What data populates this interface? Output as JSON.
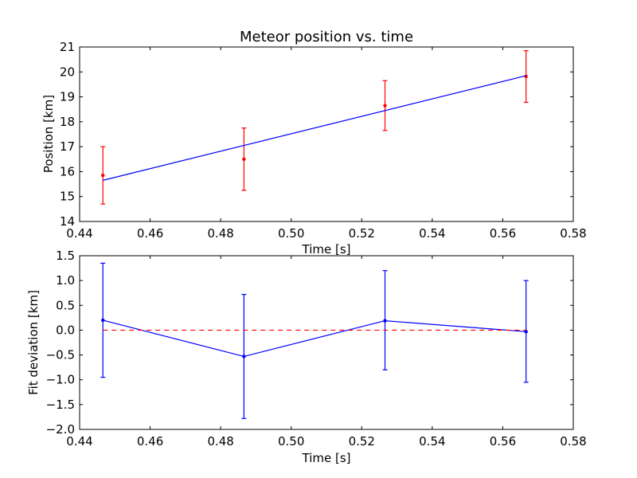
{
  "chart_data": [
    {
      "type": "line",
      "title": "Meteor position vs. time",
      "xlabel": "Time [s]",
      "ylabel": "Position [km]",
      "xlim": [
        0.44,
        0.58
      ],
      "ylim": [
        14,
        21
      ],
      "xticks": [
        "0.44",
        "0.46",
        "0.48",
        "0.50",
        "0.52",
        "0.54",
        "0.56",
        "0.58"
      ],
      "yticks": [
        "14",
        "15",
        "16",
        "17",
        "18",
        "19",
        "20",
        "21"
      ],
      "grid": false,
      "series": [
        {
          "kind": "errorbar",
          "color": "#ff0000",
          "marker": "point",
          "x": [
            0.4466,
            0.4866,
            0.5266,
            0.5666
          ],
          "y": [
            15.85,
            16.5,
            18.65,
            19.82
          ],
          "yerr_low": [
            14.7,
            15.25,
            17.65,
            18.78
          ],
          "yerr_high": [
            17.0,
            17.75,
            19.65,
            20.85
          ]
        },
        {
          "kind": "fit-line",
          "color": "#0000ff",
          "x": [
            0.4466,
            0.5666
          ],
          "y": [
            15.65,
            19.85
          ]
        }
      ]
    },
    {
      "type": "line",
      "title": "",
      "xlabel": "Time [s]",
      "ylabel": "Fit deviation [km]",
      "xlim": [
        0.44,
        0.58
      ],
      "ylim": [
        -2.0,
        1.5
      ],
      "xticks": [
        "0.44",
        "0.46",
        "0.48",
        "0.50",
        "0.52",
        "0.54",
        "0.56",
        "0.58"
      ],
      "yticks": [
        "−2.0",
        "−1.5",
        "−1.0",
        "−0.5",
        "0.0",
        "0.5",
        "1.0",
        "1.5"
      ],
      "grid": false,
      "series": [
        {
          "kind": "errorbar-line",
          "color": "#0000ff",
          "marker": "point",
          "x": [
            0.4466,
            0.4866,
            0.5266,
            0.5666
          ],
          "y": [
            0.2,
            -0.53,
            0.19,
            -0.03
          ],
          "yerr_low": [
            -0.95,
            -1.78,
            -0.8,
            -1.05
          ],
          "yerr_high": [
            1.35,
            0.72,
            1.2,
            1.0
          ]
        },
        {
          "kind": "zero-line",
          "color": "#ff0000",
          "style": "dashed",
          "x": [
            0.4466,
            0.5666
          ],
          "y": [
            0.0,
            0.0
          ]
        }
      ]
    }
  ]
}
